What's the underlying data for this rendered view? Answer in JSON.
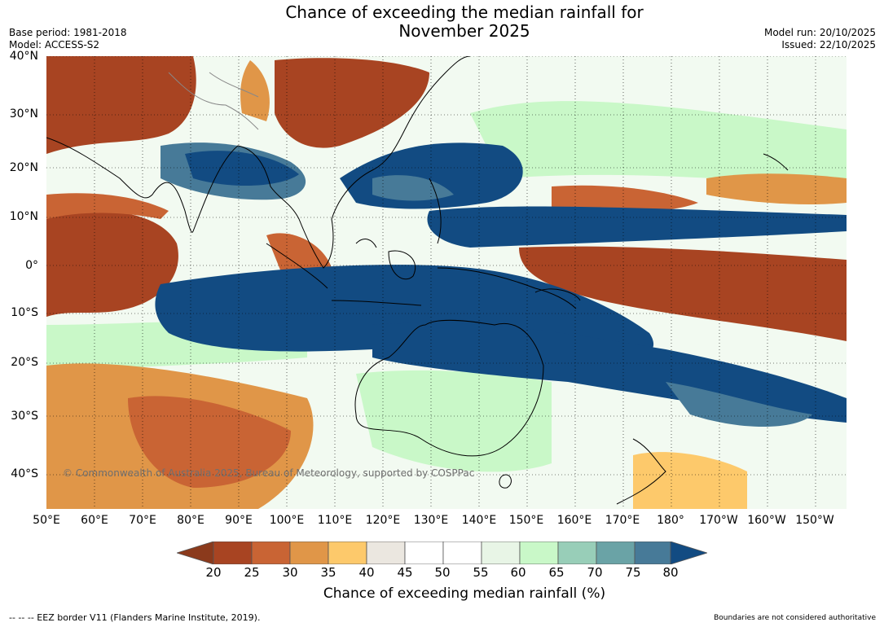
{
  "title": {
    "line1": "Chance of exceeding the median rainfall for",
    "line2": "November 2025"
  },
  "meta": {
    "base_period": "Base period: 1981-2018",
    "model": "Model: ACCESS-S2",
    "model_run": "Model run: 20/10/2025",
    "issued": "Issued: 22/10/2025"
  },
  "map": {
    "lat_labels": [
      "40°N",
      "30°N",
      "20°N",
      "10°N",
      "0°",
      "10°S",
      "20°S",
      "30°S",
      "40°S"
    ],
    "lon_labels": [
      "50°E",
      "60°E",
      "70°E",
      "80°E",
      "90°E",
      "100°E",
      "110°E",
      "120°E",
      "130°E",
      "140°E",
      "150°E",
      "160°E",
      "170°E",
      "180°",
      "170°W",
      "160°W",
      "150°W"
    ],
    "credit": "© Commonwealth of Australia 2025, Bureau of Meteorology, supported by COSPPac"
  },
  "colorbar": {
    "ticks": [
      "20",
      "25",
      "30",
      "35",
      "40",
      "45",
      "50",
      "55",
      "60",
      "65",
      "70",
      "75",
      "80"
    ],
    "colors": {
      "below": "#8b3a1c",
      "bins": [
        "#a84422",
        "#c96434",
        "#e09648",
        "#fdc96b",
        "#ebe7e0",
        "#ffffff",
        "#ffffff",
        "#e8f5e6",
        "#c9f8c8",
        "#98ceb8",
        "#6aa3a6",
        "#477a98"
      ],
      "above": "#124b82"
    },
    "label": "Chance of exceeding median rainfall (%)"
  },
  "footer": {
    "eez": "--  --  -- EEZ border V11 (Flanders Marine Institute, 2019).",
    "disclaimer": "Boundaries are not considered authoritative"
  }
}
